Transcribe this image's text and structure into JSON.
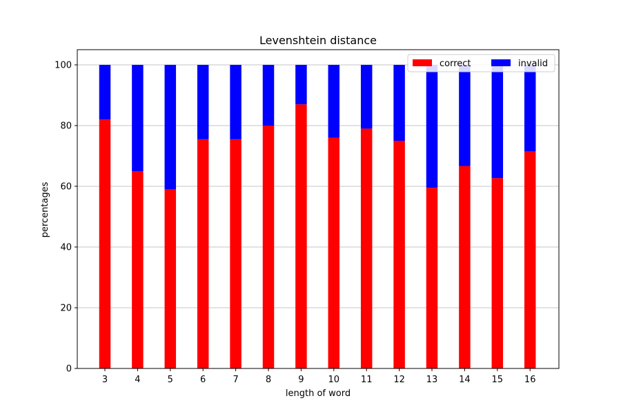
{
  "chart_data": {
    "type": "bar",
    "stacked": true,
    "title": "Levenshtein distance",
    "xlabel": "length of word",
    "ylabel": "percentages",
    "categories": [
      "3",
      "4",
      "5",
      "6",
      "7",
      "8",
      "9",
      "10",
      "11",
      "12",
      "13",
      "14",
      "15",
      "16"
    ],
    "series": [
      {
        "name": "correct",
        "color": "#ff0000",
        "values": [
          82,
          65,
          59,
          75.5,
          75.5,
          80,
          87,
          76,
          79,
          75,
          59.5,
          66.7,
          62.7,
          71.5
        ]
      },
      {
        "name": "invalid",
        "color": "#0000ff",
        "values": [
          18,
          35,
          41,
          24.5,
          24.5,
          20,
          13,
          24,
          21,
          25,
          40.5,
          33.3,
          37.3,
          28.5
        ]
      }
    ],
    "ylim": [
      0,
      105
    ],
    "yticks": [
      0,
      20,
      40,
      60,
      80,
      100
    ],
    "grid": "horizontal",
    "legend": {
      "position": "top-right",
      "columns": 2
    }
  }
}
